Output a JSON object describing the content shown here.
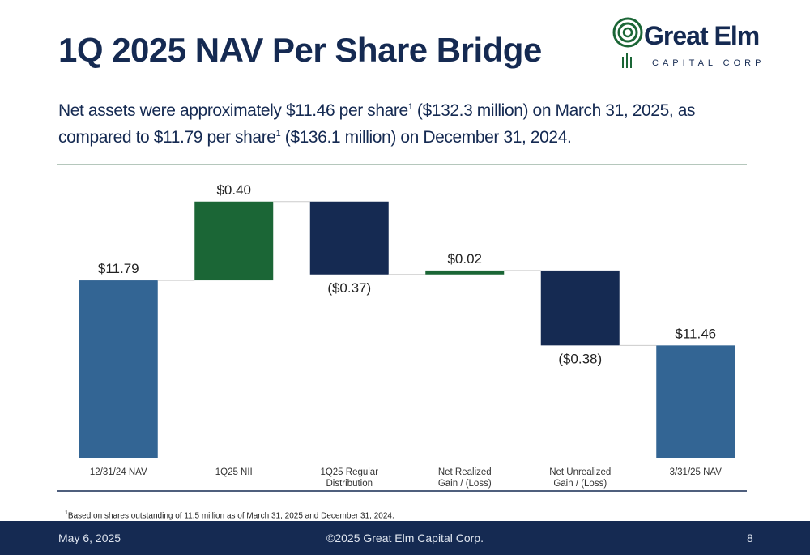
{
  "slide": {
    "logo_name": "Great Elm",
    "logo_sub": "CAPITAL CORP",
    "subtitle_parts": [
      "Net assets were approximately $11.46 per share",
      "1",
      " ($132.3 million) on March 31, 2025, as compared to $11.79 per share",
      "1",
      " ($136.1 million) on December 31, 2024."
    ],
    "footnote_mark": "1",
    "footnote": "Based on shares outstanding of 11.5 million as of March 31, 2025 and December 31, 2024.",
    "footer_date": "May 6, 2025",
    "footer_copyright": "©2025 Great Elm Capital Corp.",
    "page_number": "8"
  },
  "chart_data": {
    "type": "waterfall",
    "title": "1Q 2025 NAV Per Share Bridge",
    "categories": [
      "12/31/24 NAV",
      "1Q25 NII",
      "1Q25 Regular Distribution",
      "Net Realized Gain / (Loss)",
      "Net Unrealized Gain / (Loss)",
      "3/31/25 NAV"
    ],
    "values": [
      11.79,
      0.4,
      -0.37,
      0.02,
      -0.38,
      11.46
    ],
    "value_labels": [
      "$11.79",
      "$0.40",
      "($0.37)",
      "$0.02",
      "($0.38)",
      "$11.46"
    ],
    "colors": {
      "total": "#336594",
      "increase": "#1b6636",
      "decrease": "#152a52"
    },
    "ylim": [
      10.89,
      12.3
    ]
  }
}
